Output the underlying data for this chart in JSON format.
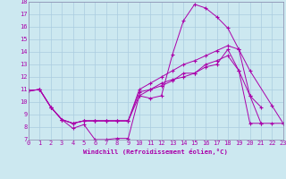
{
  "background_color": "#cce8f0",
  "grid_color": "#aacce0",
  "line_color": "#aa00aa",
  "xlabel": "Windchill (Refroidissement éolien,°C)",
  "xlim": [
    0,
    23
  ],
  "ylim": [
    7,
    18
  ],
  "xticks": [
    0,
    1,
    2,
    3,
    4,
    5,
    6,
    7,
    8,
    9,
    10,
    11,
    12,
    13,
    14,
    15,
    16,
    17,
    18,
    19,
    20,
    21,
    22,
    23
  ],
  "yticks": [
    7,
    8,
    9,
    10,
    11,
    12,
    13,
    14,
    15,
    16,
    17,
    18
  ],
  "line1_x": [
    0,
    1,
    2,
    3,
    4,
    5,
    6,
    7,
    8,
    9,
    10,
    11,
    12,
    13,
    14,
    15,
    16,
    17,
    18,
    19,
    20,
    21
  ],
  "line1_y": [
    10.9,
    11.0,
    9.6,
    8.6,
    7.9,
    8.2,
    7.0,
    7.0,
    7.1,
    7.1,
    10.5,
    10.3,
    10.5,
    13.8,
    16.5,
    17.8,
    17.5,
    16.8,
    15.9,
    14.2,
    10.5,
    9.6
  ],
  "line2_x": [
    0,
    1,
    2,
    3,
    4,
    5,
    6,
    7,
    8,
    9,
    10,
    11,
    12,
    13,
    14,
    15,
    16,
    17,
    18,
    19,
    20,
    21
  ],
  "line2_y": [
    10.9,
    11.0,
    9.6,
    8.6,
    8.3,
    8.5,
    8.5,
    8.5,
    8.5,
    8.5,
    10.5,
    11.0,
    11.3,
    11.7,
    12.3,
    12.3,
    13.0,
    13.3,
    13.7,
    12.5,
    10.5,
    8.3
  ],
  "line3_x": [
    0,
    1,
    2,
    3,
    4,
    5,
    6,
    7,
    8,
    9,
    10,
    11,
    12,
    13,
    14,
    15,
    16,
    17,
    18,
    19,
    20,
    22,
    23
  ],
  "line3_y": [
    10.9,
    11.0,
    9.6,
    8.6,
    8.3,
    8.5,
    8.5,
    8.5,
    8.5,
    8.5,
    11.0,
    11.5,
    12.0,
    12.5,
    13.0,
    13.3,
    13.7,
    14.1,
    14.5,
    14.2,
    12.5,
    9.7,
    8.3
  ],
  "line4_x": [
    0,
    1,
    2,
    3,
    4,
    5,
    6,
    7,
    8,
    9,
    10,
    11,
    12,
    13,
    14,
    15,
    16,
    17,
    18,
    19,
    20,
    21,
    22,
    23
  ],
  "line4_y": [
    10.9,
    11.0,
    9.6,
    8.6,
    8.3,
    8.5,
    8.5,
    8.5,
    8.5,
    8.5,
    10.8,
    11.0,
    11.5,
    11.8,
    12.0,
    12.3,
    12.8,
    13.0,
    14.2,
    12.5,
    8.3,
    8.3,
    8.3,
    8.3
  ]
}
